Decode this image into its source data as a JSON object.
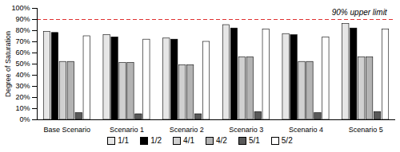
{
  "chart_data": {
    "type": "bar",
    "y_label": "Degree of Saturation",
    "categories": [
      "Base Scenario",
      "Scenario 1",
      "Scenario 2",
      "Scenario 3",
      "Scenario 4",
      "Scenario 5"
    ],
    "series": [
      {
        "name": "1/1",
        "color": "#e6e6e6",
        "values": [
          79,
          76,
          73,
          85,
          77,
          86
        ]
      },
      {
        "name": "1/2",
        "color": "#000000",
        "values": [
          78,
          74,
          72,
          82,
          76,
          82
        ]
      },
      {
        "name": "4/1",
        "color": "#d0d0d0",
        "values": [
          52,
          51,
          49,
          56,
          52,
          56
        ]
      },
      {
        "name": "4/2",
        "color": "#b3b3b3",
        "values": [
          52,
          51,
          49,
          56,
          52,
          56
        ]
      },
      {
        "name": "5/1",
        "color": "#595959",
        "values": [
          6,
          5,
          5,
          7,
          6,
          7
        ]
      },
      {
        "name": "5/2",
        "color": "#ffffff",
        "values": [
          75,
          72,
          70,
          81,
          74,
          81
        ]
      }
    ],
    "ylim": [
      0,
      100
    ],
    "yticks": [
      {
        "value": 0,
        "label": "0%"
      },
      {
        "value": 10,
        "label": "10%"
      },
      {
        "value": 20,
        "label": "20%"
      },
      {
        "value": 30,
        "label": "30%"
      },
      {
        "value": 40,
        "label": "40%"
      },
      {
        "value": 50,
        "label": "50%"
      },
      {
        "value": 60,
        "label": "60%"
      },
      {
        "value": 70,
        "label": "70%"
      },
      {
        "value": 80,
        "label": "80%"
      },
      {
        "value": 90,
        "label": "90%"
      },
      {
        "value": 100,
        "label": "100%"
      }
    ],
    "annotation": {
      "text": "90% upper limit",
      "value": 90,
      "category": "Scenario 5",
      "color": "#e03030",
      "line_style": "dashed"
    },
    "grid": false,
    "legend": "bottom"
  }
}
